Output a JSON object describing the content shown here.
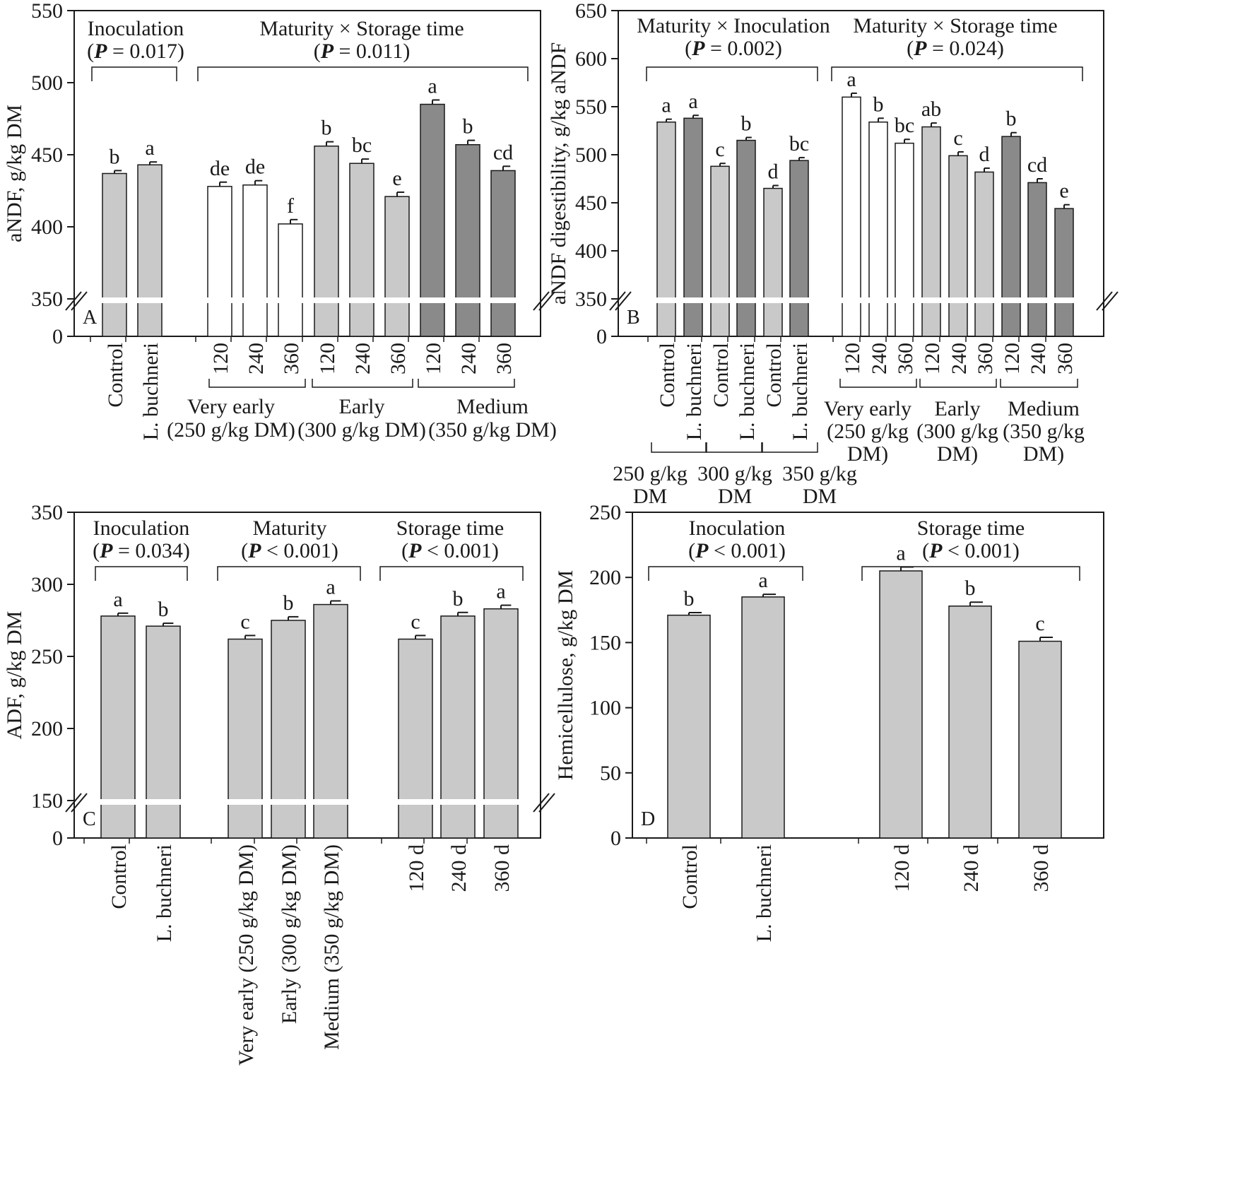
{
  "colors": {
    "white_fill": "#ffffff",
    "light_fill": "#c9c9c9",
    "dark_fill": "#8a8a8a",
    "ink": "#1a1a1a",
    "axis_break": "#ffffff"
  },
  "chart_data": [
    {
      "panel": "A",
      "type": "bar",
      "ylabel": "aNDF, g/kg DM",
      "ylim": [
        350,
        550
      ],
      "yticks": [
        "0",
        "350",
        "400",
        "450",
        "500",
        "550"
      ],
      "axis_break": true,
      "annotations": [
        {
          "title": "Inoculation",
          "p_label": "P",
          "p_rest": " = 0.017)"
        },
        {
          "title": "Maturity × Storage time",
          "p_label": "P",
          "p_rest": " = 0.011)"
        }
      ],
      "bars": [
        {
          "label": "Control",
          "value": 437,
          "error": 2,
          "letter": "b",
          "fill": "light"
        },
        {
          "label": "L. buchneri",
          "value": 443,
          "error": 2,
          "letter": "a",
          "fill": "light"
        },
        {
          "label": "120",
          "value": 428,
          "error": 3,
          "letter": "de",
          "fill": "white"
        },
        {
          "label": "240",
          "value": 429,
          "error": 3,
          "letter": "de",
          "fill": "white"
        },
        {
          "label": "360",
          "value": 402,
          "error": 3,
          "letter": "f",
          "fill": "white"
        },
        {
          "label": "120",
          "value": 456,
          "error": 3,
          "letter": "b",
          "fill": "light"
        },
        {
          "label": "240",
          "value": 444,
          "error": 3,
          "letter": "bc",
          "fill": "light"
        },
        {
          "label": "360",
          "value": 421,
          "error": 3,
          "letter": "e",
          "fill": "light"
        },
        {
          "label": "120",
          "value": 485,
          "error": 3,
          "letter": "a",
          "fill": "dark"
        },
        {
          "label": "240",
          "value": 457,
          "error": 3,
          "letter": "b",
          "fill": "dark"
        },
        {
          "label": "360",
          "value": 439,
          "error": 3,
          "letter": "cd",
          "fill": "dark"
        }
      ],
      "group_labels": [
        {
          "line1": "Very early",
          "line2": "(250 g/kg DM)"
        },
        {
          "line1": "Early",
          "line2": "(300 g/kg DM)"
        },
        {
          "line1": "Medium",
          "line2": "(350 g/kg DM)"
        }
      ]
    },
    {
      "panel": "B",
      "type": "bar",
      "ylabel": "aNDF digestibility, g/kg aNDF",
      "ylim": [
        350,
        650
      ],
      "yticks": [
        "0",
        "350",
        "400",
        "450",
        "500",
        "550",
        "600",
        "650"
      ],
      "axis_break": true,
      "annotations": [
        {
          "title": "Maturity × Inoculation",
          "p_label": "P",
          "p_rest": " = 0.002)"
        },
        {
          "title": "Maturity × Storage time",
          "p_label": "P",
          "p_rest": " = 0.024)"
        }
      ],
      "bars": [
        {
          "label": "Control",
          "value": 534,
          "error": 3,
          "letter": "a",
          "fill": "light"
        },
        {
          "label": "L. buchneri",
          "value": 538,
          "error": 3,
          "letter": "a",
          "fill": "dark"
        },
        {
          "label": "Control",
          "value": 488,
          "error": 3,
          "letter": "c",
          "fill": "light"
        },
        {
          "label": "L. buchneri",
          "value": 515,
          "error": 3,
          "letter": "b",
          "fill": "dark"
        },
        {
          "label": "Control",
          "value": 465,
          "error": 3,
          "letter": "d",
          "fill": "light"
        },
        {
          "label": "L. buchneri",
          "value": 494,
          "error": 3,
          "letter": "bc",
          "fill": "dark"
        },
        {
          "label": "120",
          "value": 560,
          "error": 4,
          "letter": "a",
          "fill": "white"
        },
        {
          "label": "240",
          "value": 534,
          "error": 4,
          "letter": "b",
          "fill": "white"
        },
        {
          "label": "360",
          "value": 512,
          "error": 4,
          "letter": "bc",
          "fill": "white"
        },
        {
          "label": "120",
          "value": 529,
          "error": 4,
          "letter": "ab",
          "fill": "light"
        },
        {
          "label": "240",
          "value": 499,
          "error": 4,
          "letter": "c",
          "fill": "light"
        },
        {
          "label": "360",
          "value": 482,
          "error": 4,
          "letter": "d",
          "fill": "light"
        },
        {
          "label": "120",
          "value": 519,
          "error": 4,
          "letter": "b",
          "fill": "dark"
        },
        {
          "label": "240",
          "value": 471,
          "error": 4,
          "letter": "cd",
          "fill": "dark"
        },
        {
          "label": "360",
          "value": 444,
          "error": 4,
          "letter": "e",
          "fill": "dark"
        }
      ],
      "inoc_group_labels": [
        {
          "line1": "250 g/kg",
          "line2": "DM"
        },
        {
          "line1": "300 g/kg",
          "line2": "DM"
        },
        {
          "line1": "350 g/kg",
          "line2": "DM"
        }
      ],
      "group_labels": [
        {
          "line1": "Very early",
          "line2": "(250 g/kg",
          "line3": "DM)"
        },
        {
          "line1": "Early",
          "line2": "(300 g/kg",
          "line3": "DM)"
        },
        {
          "line1": "Medium",
          "line2": "(350 g/kg",
          "line3": "DM)"
        }
      ]
    },
    {
      "panel": "C",
      "type": "bar",
      "ylabel": "ADF, g/kg DM",
      "ylim": [
        150,
        350
      ],
      "yticks": [
        "0",
        "150",
        "200",
        "250",
        "300",
        "350"
      ],
      "axis_break": true,
      "annotations": [
        {
          "title": "Inoculation",
          "p_label": "P",
          "p_rest": " = 0.034)"
        },
        {
          "title": "Maturity",
          "p_label": "P",
          "p_rest": " < 0.001)"
        },
        {
          "title": "Storage time",
          "p_label": "P",
          "p_rest": " < 0.001)"
        }
      ],
      "bars": [
        {
          "label": "Control",
          "value": 278,
          "error": 2,
          "letter": "a",
          "fill": "light"
        },
        {
          "label": "L. buchneri",
          "value": 271,
          "error": 2,
          "letter": "b",
          "fill": "light"
        },
        {
          "label": "Very early (250 g/kg DM)",
          "value": 262,
          "error": 2.5,
          "letter": "c",
          "fill": "light"
        },
        {
          "label": "Early (300 g/kg DM)",
          "value": 275,
          "error": 2.5,
          "letter": "b",
          "fill": "light"
        },
        {
          "label": "Medium (350 g/kg DM)",
          "value": 286,
          "error": 2.5,
          "letter": "a",
          "fill": "light"
        },
        {
          "label": "120 d",
          "value": 262,
          "error": 2.5,
          "letter": "c",
          "fill": "light"
        },
        {
          "label": "240 d",
          "value": 278,
          "error": 2.5,
          "letter": "b",
          "fill": "light"
        },
        {
          "label": "360 d",
          "value": 283,
          "error": 2.5,
          "letter": "a",
          "fill": "light"
        }
      ]
    },
    {
      "panel": "D",
      "type": "bar",
      "ylabel": "Hemicellulose, g/kg DM",
      "ylim": [
        0,
        250
      ],
      "yticks": [
        "0",
        "50",
        "100",
        "150",
        "200",
        "250"
      ],
      "axis_break": false,
      "annotations": [
        {
          "title": "Inoculation",
          "p_label": "P",
          "p_rest": " < 0.001)"
        },
        {
          "title": "Storage time",
          "p_label": "P",
          "p_rest": " < 0.001)"
        }
      ],
      "bars": [
        {
          "label": "Control",
          "value": 171,
          "error": 2,
          "letter": "b",
          "fill": "light"
        },
        {
          "label": "L. buchneri",
          "value": 185,
          "error": 2,
          "letter": "a",
          "fill": "light"
        },
        {
          "label": "120 d",
          "value": 205,
          "error": 3,
          "letter": "a",
          "fill": "light"
        },
        {
          "label": "240 d",
          "value": 178,
          "error": 3,
          "letter": "b",
          "fill": "light"
        },
        {
          "label": "360 d",
          "value": 151,
          "error": 3,
          "letter": "c",
          "fill": "light"
        }
      ]
    }
  ]
}
